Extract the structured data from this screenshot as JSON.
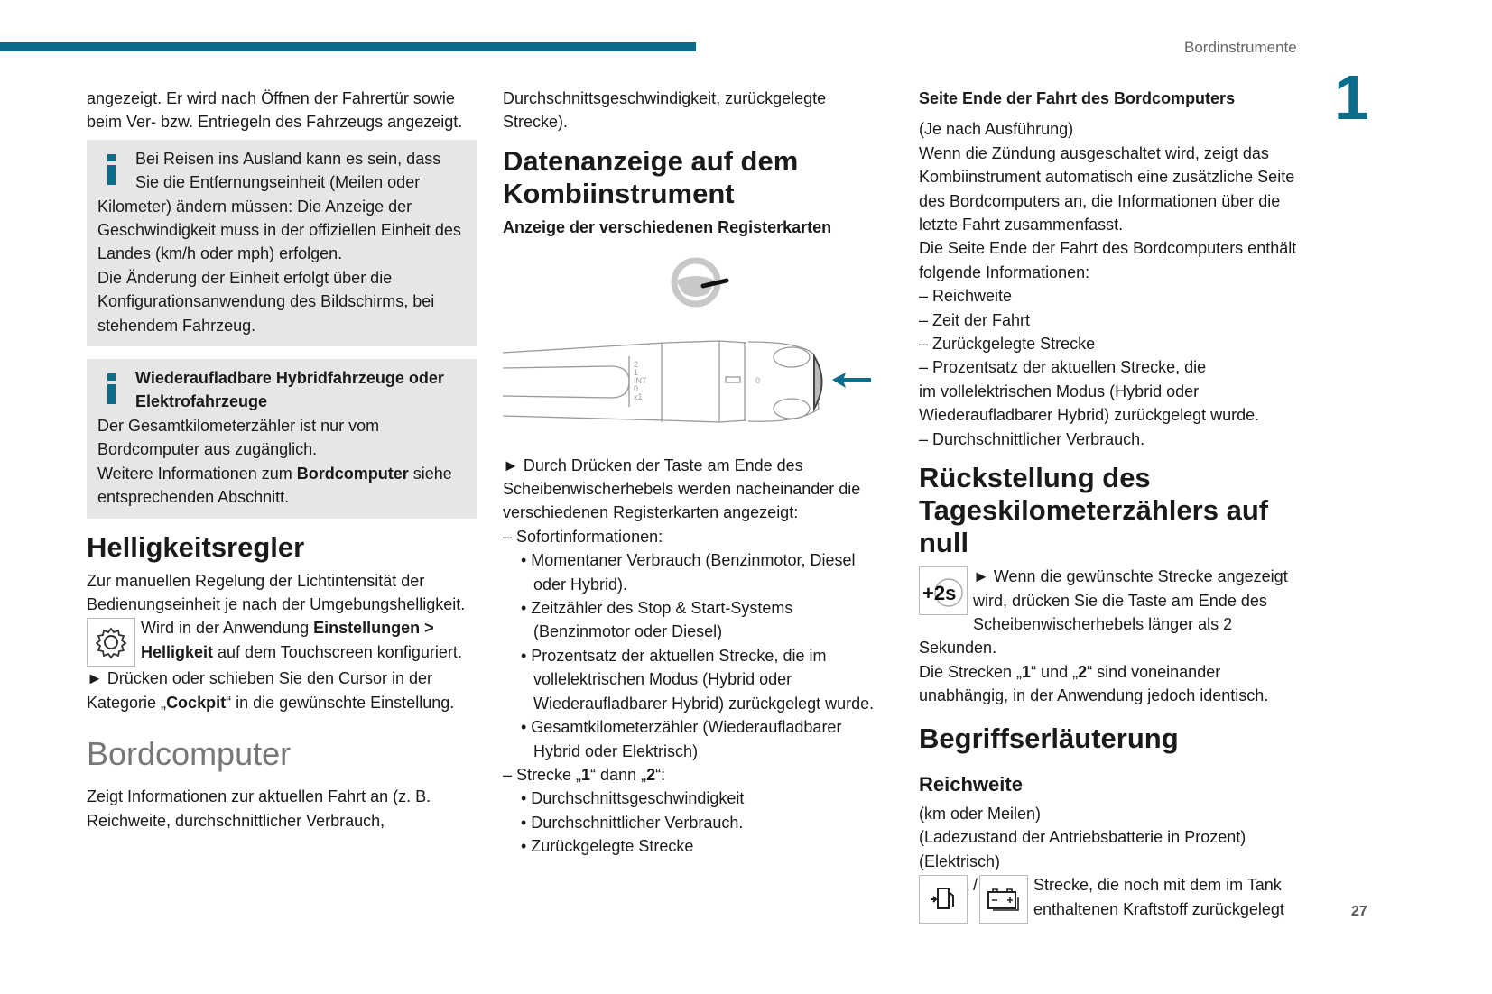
{
  "header": {
    "section": "Bordinstrumente",
    "chapter": "1",
    "page": "27",
    "accent": "#0a6e8a"
  },
  "col1": {
    "intro": "angezeigt. Er wird nach Öffnen der Fahrertür sowie beim Ver- bzw. Entriegeln des Fahrzeugs angezeigt.",
    "info1": {
      "lead": "Bei Reisen ins Ausland kann es sein, dass Sie die Entfernungseinheit (Meilen oder",
      "rest": "Kilometer) ändern müssen: Die Anzeige der Geschwindigkeit muss in der offiziellen Einheit des Landes (km/h oder mph) erfolgen.",
      "p2": "Die Änderung der Einheit erfolgt über die Konfigurationsanwendung des Bildschirms, bei stehendem Fahrzeug."
    },
    "info2": {
      "title": "Wiederaufladbare Hybridfahrzeuge oder Elektrofahrzeuge",
      "p1": "Der Gesamtkilometerzähler ist nur vom Bordcomputer aus zugänglich.",
      "p2a": "Weitere Informationen zum ",
      "p2b": "Bordcomputer",
      "p2c": " siehe entsprechenden Abschnitt."
    },
    "h_brightness": "Helligkeitsregler",
    "brightness_p": "Zur manuellen Regelung der Lichtintensität der Bedienungseinheit je nach der Umgebungshelligkeit.",
    "settings_a": "Wird in der Anwendung ",
    "settings_b": "Einstellungen > Helligkeit",
    "settings_c": " auf dem Touchscreen konfiguriert.",
    "step_a": "► Drücken oder schieben Sie den Cursor in der Kategorie „",
    "step_b": "Cockpit",
    "step_c": "“ in die gewünschte Einstellung.",
    "h_bordcomputer": "Bordcomputer",
    "bc_p": "Zeigt Informationen zur aktuellen Fahrt an (z. B. Reichweite, durchschnittlicher Verbrauch,"
  },
  "col2": {
    "cont": "Durchschnittsgeschwindigkeit, zurückgelegte Strecke).",
    "h": "Datenanzeige auf dem Kombiinstrument",
    "sub": "Anzeige der verschiedenen Registerkarten",
    "diagram_labels": [
      "2",
      "1",
      "INT",
      "0",
      "x1",
      "0"
    ],
    "step": "► Durch Drücken der Taste am Ende des Scheibenwischerhebels werden nacheinander die verschiedenen Registerkarten angezeigt:",
    "d1": "–  Sofortinformationen:",
    "b1": [
      "•  Momentaner Verbrauch (Benzinmotor, Diesel oder Hybrid).",
      "•  Zeitzähler des Stop & Start-Systems (Benzinmotor oder Diesel)",
      "•  Prozentsatz der aktuellen Strecke, die im vollelektrischen Modus (Hybrid oder Wiederaufladbarer Hybrid) zurückgelegt wurde.",
      "•  Gesamtkilometerzähler (Wiederaufladbarer Hybrid oder Elektrisch)"
    ],
    "d2a": "–  Strecke „",
    "d2b": "1",
    "d2c": "“ dann „",
    "d2d": "2",
    "d2e": "“:",
    "b2": [
      "•  Durchschnittsgeschwindigkeit",
      "•  Durchschnittlicher Verbrauch.",
      "•  Zurückgelegte Strecke"
    ]
  },
  "col3": {
    "h4": "Seite Ende der Fahrt des Bordcomputers",
    "p1": "(Je nach Ausführung)",
    "p2": "Wenn die Zündung ausgeschaltet wird, zeigt das Kombiinstrument automatisch eine zusätzliche Seite des Bordcomputers an, die Informationen über die letzte Fahrt zusammenfasst.",
    "p3": "Die Seite Ende der Fahrt des Bordcomputers enthält folgende Informationen:",
    "list": [
      "–  Reichweite",
      "–  Zeit der Fahrt",
      "–  Zurückgelegte Strecke",
      "–  Prozentsatz der aktuellen Strecke, die"
    ],
    "list_cont": "im vollelektrischen Modus (Hybrid oder Wiederaufladbarer Hybrid) zurückgelegt wurde.",
    "list_last": "–  Durchschnittlicher Verbrauch.",
    "h_reset": "Rückstellung des Tageskilometerzählers auf null",
    "reset_icon": "+2s",
    "reset_p": "► Wenn die gewünschte Strecke angezeigt wird, drücken Sie die Taste am Ende des Scheibenwischerhebels länger als 2 Sekunden.",
    "reset_p2a": "Die Strecken „",
    "reset_p2b": "1",
    "reset_p2c": "“ und „",
    "reset_p2d": "2",
    "reset_p2e": "“ sind voneinander unabhängig, in der Anwendung jedoch identisch.",
    "h_terms": "Begriffserläuterung",
    "h_range": "Reichweite",
    "r1": "(km oder Meilen)",
    "r2": "(Ladezustand der Antriebsbatterie in Prozent)",
    "r3": "(Elektrisch)",
    "slash": "/",
    "r4": "Strecke, die noch mit dem im Tank enthaltenen Kraftstoff zurückgelegt"
  }
}
